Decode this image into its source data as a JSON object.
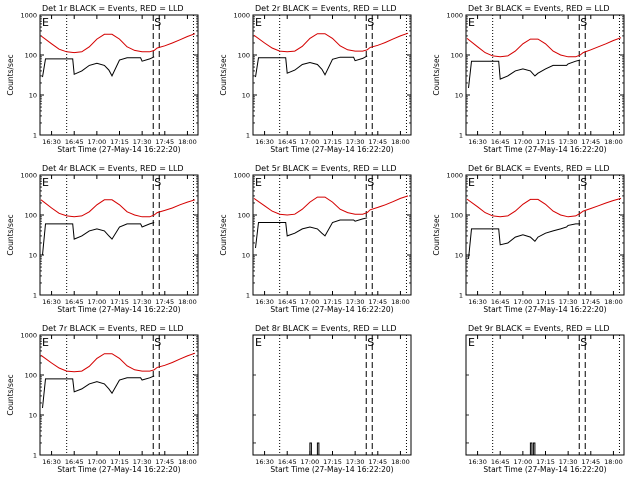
{
  "window": {
    "title": ""
  },
  "colors": {
    "events": "#000000",
    "lld": "#d40000",
    "background": "#ffffff",
    "axes": "#000000"
  },
  "chart_data": [
    {
      "type": "line",
      "title": "Det 1r BLACK = Events, RED = LLD",
      "xlabel": "Start Time (27-May-14 16:22:20)",
      "ylabel": "Counts/sec",
      "y_scale": "log",
      "ylim": [
        1,
        1000
      ],
      "yticks": [
        "1",
        "10",
        "100",
        "1000"
      ],
      "x_ticks": [
        "16:30",
        "16:45",
        "17:00",
        "17:15",
        "17:30",
        "17:45",
        "18:00"
      ],
      "markers": {
        "E": "16:22:20",
        "S": "17:40"
      },
      "series": [
        {
          "name": "RED = LLD",
          "color": "#d40000",
          "x": [
            "16:23",
            "16:30",
            "16:35",
            "16:40",
            "16:45",
            "16:50",
            "16:55",
            "17:00",
            "17:05",
            "17:10",
            "17:15",
            "17:20",
            "17:25",
            "17:30",
            "17:35",
            "17:38",
            "17:40",
            "17:45",
            "17:50",
            "17:55",
            "18:00",
            "18:05"
          ],
          "y": [
            300,
            190,
            140,
            120,
            115,
            120,
            160,
            250,
            330,
            330,
            250,
            160,
            130,
            120,
            120,
            130,
            150,
            170,
            200,
            240,
            290,
            340
          ]
        },
        {
          "name": "BLACK = Events",
          "color": "#000000",
          "x": [
            "16:24",
            "16:26",
            "16:30",
            "16:35",
            "16:40",
            "16:44",
            "16:45",
            "16:50",
            "16:55",
            "17:00",
            "17:05",
            "17:08",
            "17:10",
            "17:15",
            "17:20",
            "17:25",
            "17:29",
            "17:30",
            "17:35",
            "17:38"
          ],
          "y": [
            28,
            80,
            80,
            80,
            80,
            80,
            33,
            40,
            55,
            62,
            55,
            42,
            30,
            75,
            85,
            85,
            85,
            70,
            80,
            90
          ]
        }
      ]
    },
    {
      "type": "line",
      "title": "Det 2r BLACK = Events, RED = LLD",
      "xlabel": "Start Time (27-May-14 16:22:20)",
      "ylabel": "Counts/sec",
      "y_scale": "log",
      "ylim": [
        1,
        1000
      ],
      "yticks": [
        "1",
        "10",
        "100",
        "1000"
      ],
      "x_ticks": [
        "16:30",
        "16:45",
        "17:00",
        "17:15",
        "17:30",
        "17:45",
        "18:00"
      ],
      "markers": {
        "E": "16:22:20",
        "S": "17:40"
      },
      "series": [
        {
          "name": "RED = LLD",
          "color": "#d40000",
          "x": [
            "16:23",
            "16:30",
            "16:35",
            "16:40",
            "16:45",
            "16:50",
            "16:55",
            "17:00",
            "17:05",
            "17:10",
            "17:15",
            "17:20",
            "17:25",
            "17:30",
            "17:35",
            "17:38",
            "17:40",
            "17:45",
            "17:50",
            "17:55",
            "18:00",
            "18:05"
          ],
          "y": [
            310,
            200,
            150,
            125,
            120,
            125,
            165,
            260,
            340,
            340,
            260,
            170,
            135,
            125,
            125,
            135,
            155,
            175,
            205,
            250,
            300,
            350
          ]
        },
        {
          "name": "BLACK = Events",
          "color": "#000000",
          "x": [
            "16:24",
            "16:26",
            "16:30",
            "16:35",
            "16:40",
            "16:44",
            "16:45",
            "16:50",
            "16:55",
            "17:00",
            "17:05",
            "17:08",
            "17:10",
            "17:15",
            "17:20",
            "17:25",
            "17:29",
            "17:30",
            "17:35",
            "17:38"
          ],
          "y": [
            28,
            85,
            85,
            85,
            85,
            85,
            35,
            42,
            58,
            65,
            58,
            44,
            32,
            78,
            88,
            88,
            88,
            72,
            82,
            95
          ]
        }
      ]
    },
    {
      "type": "line",
      "title": "Det 3r BLACK = Events, RED = LLD",
      "xlabel": "Start Time (27-May-14 16:22:20)",
      "ylabel": "Counts/sec",
      "y_scale": "log",
      "ylim": [
        1,
        1000
      ],
      "yticks": [
        "1",
        "10",
        "100",
        "1000"
      ],
      "x_ticks": [
        "16:30",
        "16:45",
        "17:00",
        "17:15",
        "17:30",
        "17:45",
        "18:00"
      ],
      "markers": {
        "E": "16:22:20",
        "S": "17:40"
      },
      "series": [
        {
          "name": "RED = LLD",
          "color": "#d40000",
          "x": [
            "16:23",
            "16:30",
            "16:35",
            "16:40",
            "16:45",
            "16:50",
            "16:55",
            "17:00",
            "17:05",
            "17:10",
            "17:15",
            "17:20",
            "17:25",
            "17:30",
            "17:35",
            "17:38",
            "17:40",
            "17:45",
            "17:50",
            "17:55",
            "18:00",
            "18:05"
          ],
          "y": [
            260,
            160,
            115,
            95,
            90,
            95,
            125,
            190,
            250,
            250,
            190,
            125,
            100,
            90,
            90,
            100,
            115,
            135,
            160,
            190,
            230,
            270
          ]
        },
        {
          "name": "BLACK = Events",
          "color": "#000000",
          "x": [
            "16:24",
            "16:26",
            "16:30",
            "16:35",
            "16:40",
            "16:44",
            "16:45",
            "16:50",
            "16:55",
            "17:00",
            "17:05",
            "17:08",
            "17:10",
            "17:15",
            "17:20",
            "17:25",
            "17:29",
            "17:30",
            "17:35",
            "17:38"
          ],
          "y": [
            15,
            70,
            70,
            70,
            70,
            70,
            25,
            30,
            40,
            45,
            40,
            30,
            35,
            45,
            55,
            55,
            55,
            60,
            70,
            75
          ]
        }
      ]
    },
    {
      "type": "line",
      "title": "Det 4r BLACK = Events, RED = LLD",
      "xlabel": "Start Time (27-May-14 16:22:20)",
      "ylabel": "Counts/sec",
      "y_scale": "log",
      "ylim": [
        1,
        1000
      ],
      "yticks": [
        "1",
        "10",
        "100",
        "1000"
      ],
      "x_ticks": [
        "16:30",
        "16:45",
        "17:00",
        "17:15",
        "17:30",
        "17:45",
        "18:00"
      ],
      "markers": {
        "E": "16:22:20",
        "S": "17:40"
      },
      "series": [
        {
          "name": "RED = LLD",
          "color": "#d40000",
          "x": [
            "16:23",
            "16:30",
            "16:35",
            "16:40",
            "16:45",
            "16:50",
            "16:55",
            "17:00",
            "17:05",
            "17:10",
            "17:15",
            "17:20",
            "17:25",
            "17:30",
            "17:35",
            "17:38",
            "17:40",
            "17:45",
            "17:50",
            "17:55",
            "18:00",
            "18:05"
          ],
          "y": [
            240,
            150,
            110,
            95,
            90,
            95,
            120,
            180,
            240,
            240,
            180,
            120,
            100,
            90,
            90,
            100,
            115,
            130,
            150,
            180,
            210,
            240
          ]
        },
        {
          "name": "BLACK = Events",
          "color": "#000000",
          "x": [
            "16:24",
            "16:26",
            "16:30",
            "16:35",
            "16:40",
            "16:44",
            "16:45",
            "16:50",
            "16:55",
            "17:00",
            "17:05",
            "17:08",
            "17:10",
            "17:15",
            "17:20",
            "17:25",
            "17:29",
            "17:30",
            "17:35",
            "17:38"
          ],
          "y": [
            10,
            60,
            60,
            60,
            60,
            60,
            25,
            30,
            40,
            45,
            40,
            30,
            25,
            50,
            60,
            60,
            60,
            50,
            60,
            65
          ]
        }
      ]
    },
    {
      "type": "line",
      "title": "Det 5r BLACK = Events, RED = LLD",
      "xlabel": "Start Time (27-May-14 16:22:20)",
      "ylabel": "Counts/sec",
      "y_scale": "log",
      "ylim": [
        1,
        1000
      ],
      "yticks": [
        "1",
        "10",
        "100",
        "1000"
      ],
      "x_ticks": [
        "16:30",
        "16:45",
        "17:00",
        "17:15",
        "17:30",
        "17:45",
        "18:00"
      ],
      "markers": {
        "E": "16:22:20",
        "S": "17:40"
      },
      "series": [
        {
          "name": "RED = LLD",
          "color": "#d40000",
          "x": [
            "16:23",
            "16:30",
            "16:35",
            "16:40",
            "16:45",
            "16:50",
            "16:55",
            "17:00",
            "17:05",
            "17:10",
            "17:15",
            "17:20",
            "17:25",
            "17:30",
            "17:35",
            "17:38",
            "17:40",
            "17:45",
            "17:50",
            "17:55",
            "18:00",
            "18:05"
          ],
          "y": [
            260,
            170,
            125,
            105,
            100,
            105,
            140,
            210,
            280,
            280,
            210,
            140,
            115,
            105,
            105,
            115,
            135,
            155,
            180,
            215,
            260,
            300
          ]
        },
        {
          "name": "BLACK = Events",
          "color": "#000000",
          "x": [
            "16:24",
            "16:26",
            "16:30",
            "16:35",
            "16:40",
            "16:44",
            "16:45",
            "16:50",
            "16:55",
            "17:00",
            "17:05",
            "17:08",
            "17:10",
            "17:15",
            "17:20",
            "17:25",
            "17:29",
            "17:30",
            "17:35",
            "17:38"
          ],
          "y": [
            15,
            65,
            65,
            65,
            65,
            65,
            30,
            35,
            45,
            50,
            45,
            35,
            30,
            65,
            75,
            75,
            75,
            70,
            80,
            85
          ]
        }
      ]
    },
    {
      "type": "line",
      "title": "Det 6r BLACK = Events, RED = LLD",
      "xlabel": "Start Time (27-May-14 16:22:20)",
      "ylabel": "Counts/sec",
      "y_scale": "log",
      "ylim": [
        1,
        1000
      ],
      "yticks": [
        "1",
        "10",
        "100",
        "1000"
      ],
      "x_ticks": [
        "16:30",
        "16:45",
        "17:00",
        "17:15",
        "17:30",
        "17:45",
        "18:00"
      ],
      "markers": {
        "E": "16:22:20",
        "S": "17:40"
      },
      "series": [
        {
          "name": "RED = LLD",
          "color": "#d40000",
          "x": [
            "16:23",
            "16:30",
            "16:35",
            "16:40",
            "16:45",
            "16:50",
            "16:55",
            "17:00",
            "17:05",
            "17:10",
            "17:15",
            "17:20",
            "17:25",
            "17:30",
            "17:35",
            "17:38",
            "17:40",
            "17:45",
            "17:50",
            "17:55",
            "18:00",
            "18:05"
          ],
          "y": [
            250,
            160,
            115,
            95,
            90,
            95,
            125,
            185,
            245,
            245,
            185,
            125,
            100,
            90,
            95,
            110,
            125,
            145,
            170,
            200,
            230,
            260
          ]
        },
        {
          "name": "BLACK = Events",
          "color": "#000000",
          "x": [
            "16:24",
            "16:26",
            "16:30",
            "16:35",
            "16:40",
            "16:44",
            "16:45",
            "16:50",
            "16:55",
            "17:00",
            "17:05",
            "17:08",
            "17:10",
            "17:15",
            "17:20",
            "17:25",
            "17:29",
            "17:30",
            "17:35",
            "17:38"
          ],
          "y": [
            8,
            45,
            45,
            45,
            45,
            45,
            18,
            20,
            28,
            32,
            28,
            22,
            28,
            35,
            40,
            45,
            50,
            55,
            60,
            60
          ]
        }
      ]
    },
    {
      "type": "line",
      "title": "Det 7r BLACK = Events, RED = LLD",
      "xlabel": "Start Time (27-May-14 16:22:20)",
      "ylabel": "Counts/sec",
      "y_scale": "log",
      "ylim": [
        1,
        1000
      ],
      "yticks": [
        "1",
        "10",
        "100",
        "1000"
      ],
      "x_ticks": [
        "16:30",
        "16:45",
        "17:00",
        "17:15",
        "17:30",
        "17:45",
        "18:00"
      ],
      "markers": {
        "E": "16:22:20",
        "S": "17:40"
      },
      "series": [
        {
          "name": "RED = LLD",
          "color": "#d40000",
          "x": [
            "16:23",
            "16:30",
            "16:35",
            "16:40",
            "16:45",
            "16:50",
            "16:55",
            "17:00",
            "17:05",
            "17:10",
            "17:15",
            "17:20",
            "17:25",
            "17:30",
            "17:35",
            "17:38",
            "17:40",
            "17:45",
            "17:50",
            "17:55",
            "18:00",
            "18:05"
          ],
          "y": [
            310,
            200,
            150,
            125,
            120,
            125,
            165,
            260,
            340,
            340,
            260,
            170,
            135,
            125,
            125,
            135,
            155,
            175,
            205,
            250,
            300,
            350
          ]
        },
        {
          "name": "BLACK = Events",
          "color": "#000000",
          "x": [
            "16:24",
            "16:26",
            "16:30",
            "16:35",
            "16:40",
            "16:44",
            "16:45",
            "16:50",
            "16:55",
            "17:00",
            "17:05",
            "17:08",
            "17:10",
            "17:15",
            "17:20",
            "17:25",
            "17:29",
            "17:30",
            "17:35",
            "17:38"
          ],
          "y": [
            15,
            80,
            80,
            80,
            80,
            80,
            38,
            45,
            60,
            68,
            60,
            45,
            35,
            75,
            85,
            85,
            85,
            75,
            85,
            95
          ]
        }
      ]
    },
    {
      "type": "line",
      "title": "Det 8r BLACK = Events, RED = LLD",
      "xlabel": "Start Time (27-May-14 16:22:20)",
      "ylabel": "",
      "y_scale": "log",
      "ylim": [
        1,
        1000
      ],
      "yticks": [],
      "x_ticks": [
        "16:30",
        "16:45",
        "17:00",
        "17:15",
        "17:30",
        "17:45",
        "18:00"
      ],
      "markers": {
        "E": "16:22:20",
        "S": "17:40"
      },
      "series": [
        {
          "name": "BLACK = Events",
          "color": "#000000",
          "x": [
            "17:00",
            "17:00",
            "17:01",
            "17:01",
            "17:05",
            "17:05",
            "17:06",
            "17:06"
          ],
          "y": [
            1,
            2,
            2,
            1,
            1,
            2,
            2,
            1
          ]
        }
      ]
    },
    {
      "type": "line",
      "title": "Det 9r BLACK = Events, RED = LLD",
      "xlabel": "Start Time (27-May-14 16:22:20)",
      "ylabel": "",
      "y_scale": "log",
      "ylim": [
        1,
        1000
      ],
      "yticks": [],
      "x_ticks": [
        "16:30",
        "16:45",
        "17:00",
        "17:15",
        "17:30",
        "17:45",
        "18:00"
      ],
      "markers": {
        "E": "16:22:20",
        "S": "17:40"
      },
      "series": [
        {
          "name": "BLACK = Events",
          "color": "#000000",
          "x": [
            "17:05",
            "17:05",
            "17:06",
            "17:06",
            "17:07",
            "17:07",
            "17:08",
            "17:08"
          ],
          "y": [
            1,
            2,
            2,
            1,
            1,
            2,
            2,
            1
          ]
        }
      ]
    }
  ]
}
